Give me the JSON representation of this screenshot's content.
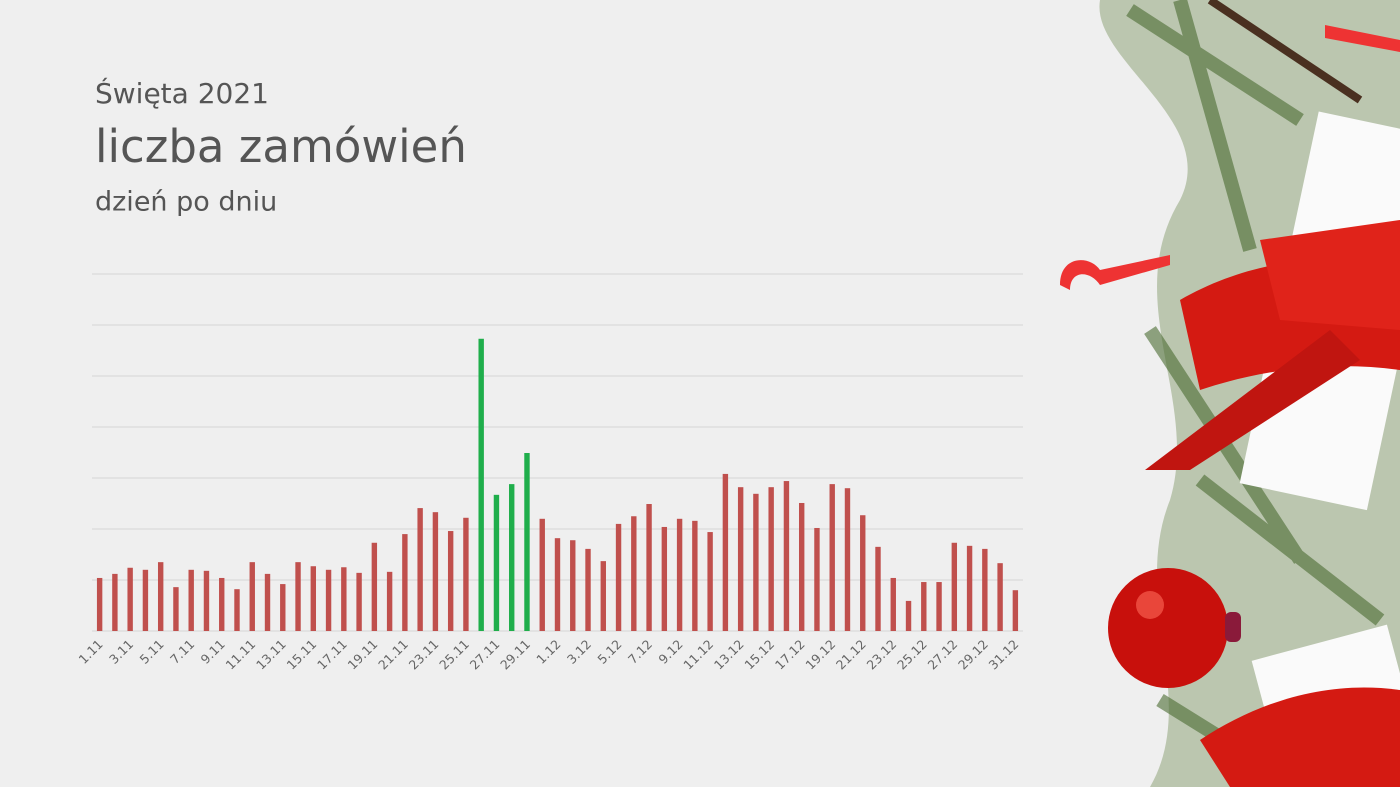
{
  "chart_data": {
    "type": "bar",
    "title": "Święta 2021",
    "subtitle": "liczba zamówień",
    "caption": "dzień po dniu",
    "categories": [
      "1.11",
      null,
      "3.11",
      null,
      "5.11",
      null,
      "7.11",
      null,
      "9.11",
      null,
      "11.11",
      null,
      "13.11",
      null,
      "15.11",
      null,
      "17.11",
      null,
      "19.11",
      null,
      "21.11",
      null,
      "23.11",
      null,
      "25.11",
      null,
      "27.11",
      null,
      "29.11",
      null,
      "1.12",
      null,
      "3.12",
      null,
      "5.12",
      null,
      "7.12",
      null,
      "9.12",
      null,
      "11.12",
      null,
      "13.12",
      null,
      "15.12",
      null,
      "17.12",
      null,
      "19.12",
      null,
      "21.12",
      null,
      "23.12",
      null,
      "25.12",
      null,
      "27.12",
      null,
      "29.12",
      null,
      "31.12"
    ],
    "values": [
      1.04,
      1.12,
      1.24,
      1.2,
      1.35,
      0.86,
      1.2,
      1.18,
      1.04,
      0.82,
      1.35,
      1.12,
      0.92,
      1.35,
      1.27,
      1.2,
      1.25,
      1.14,
      1.73,
      1.16,
      1.9,
      2.41,
      2.33,
      1.96,
      2.22,
      5.73,
      2.67,
      2.88,
      3.49,
      2.2,
      1.82,
      1.78,
      1.61,
      1.37,
      2.1,
      2.25,
      2.49,
      2.04,
      2.2,
      2.16,
      1.94,
      3.08,
      2.82,
      2.69,
      2.82,
      2.94,
      2.51,
      2.02,
      2.88,
      2.8,
      2.27,
      1.65,
      1.04,
      0.59,
      0.96,
      0.96,
      1.73,
      1.67,
      1.61,
      1.33,
      0.8
    ],
    "colors": [
      "#c0504d",
      "#c0504d",
      "#c0504d",
      "#c0504d",
      "#c0504d",
      "#c0504d",
      "#c0504d",
      "#c0504d",
      "#c0504d",
      "#c0504d",
      "#c0504d",
      "#c0504d",
      "#c0504d",
      "#c0504d",
      "#c0504d",
      "#c0504d",
      "#c0504d",
      "#c0504d",
      "#c0504d",
      "#c0504d",
      "#c0504d",
      "#c0504d",
      "#c0504d",
      "#c0504d",
      "#c0504d",
      "#1fae4b",
      "#1fae4b",
      "#1fae4b",
      "#1fae4b",
      "#c0504d",
      "#c0504d",
      "#c0504d",
      "#c0504d",
      "#c0504d",
      "#c0504d",
      "#c0504d",
      "#c0504d",
      "#c0504d",
      "#c0504d",
      "#c0504d",
      "#c0504d",
      "#c0504d",
      "#c0504d",
      "#c0504d",
      "#c0504d",
      "#c0504d",
      "#c0504d",
      "#c0504d",
      "#c0504d",
      "#c0504d",
      "#c0504d",
      "#c0504d",
      "#c0504d",
      "#c0504d",
      "#c0504d",
      "#c0504d",
      "#c0504d",
      "#c0504d",
      "#c0504d",
      "#c0504d",
      "#c0504d"
    ],
    "ylim": [
      0,
      7
    ],
    "yticks": [
      0,
      1,
      2,
      3,
      4,
      5,
      6,
      7
    ],
    "grid": true
  }
}
